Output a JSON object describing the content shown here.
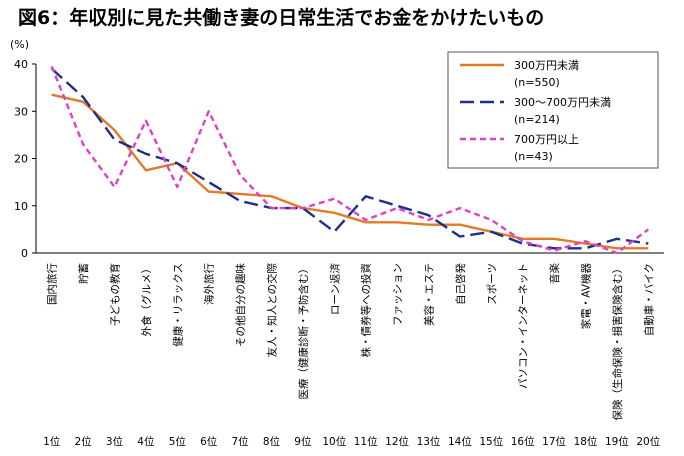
{
  "chart_data": {
    "type": "line",
    "title": "図6：年収別に見た共働き妻の日常生活でお金をかけたいもの",
    "ylabel": "(%)",
    "ylim": [
      0,
      40
    ],
    "yticks": [
      0,
      10,
      20,
      30,
      40
    ],
    "grid": false,
    "legend_position": "top-right",
    "categories": [
      "国内旅行",
      "貯蓄",
      "子どもの教育",
      "外食（グルメ）",
      "健康・リラックス",
      "海外旅行",
      "その他自分の趣味",
      "友人・知人との交際",
      "医療（健康診断・予防含む）",
      "ローン返済",
      "株・債券等への投資",
      "ファッション",
      "美容・エステ",
      "自己啓発",
      "スポーツ",
      "パソコン・インターネット",
      "音楽",
      "家電・AV機器",
      "保険（生命保険・損害保険含む）",
      "自動車・バイク"
    ],
    "ranks": [
      "1位",
      "2位",
      "3位",
      "4位",
      "5位",
      "6位",
      "7位",
      "8位",
      "9位",
      "10位",
      "11位",
      "12位",
      "13位",
      "14位",
      "15位",
      "16位",
      "17位",
      "18位",
      "19位",
      "20位"
    ],
    "series": [
      {
        "name": "300万円未満",
        "n": "(n=550)",
        "color": "#E07B28",
        "dash": "solid",
        "values": [
          33.5,
          32,
          26,
          17.5,
          19,
          13,
          12.5,
          12,
          9.5,
          8.5,
          6.5,
          6.5,
          6,
          6,
          4.5,
          3,
          3,
          2,
          1,
          1
        ]
      },
      {
        "name": "300〜700万円未満",
        "n": "(n=214)",
        "color": "#1C2F8A",
        "dash": "long",
        "values": [
          39,
          33,
          24,
          21,
          19,
          15,
          11,
          9.5,
          9.5,
          4.5,
          12,
          10,
          8,
          3.5,
          4.5,
          2,
          1,
          1,
          3,
          2
        ]
      },
      {
        "name": "700万円以上",
        "n": "(n=43)",
        "color": "#E040C8",
        "dash": "short",
        "values": [
          39.5,
          23,
          14,
          28,
          14,
          30,
          16.5,
          9.5,
          9.5,
          11.5,
          7,
          9.5,
          7,
          9.5,
          7,
          2.5,
          0.5,
          2.5,
          0,
          5
        ]
      }
    ]
  }
}
